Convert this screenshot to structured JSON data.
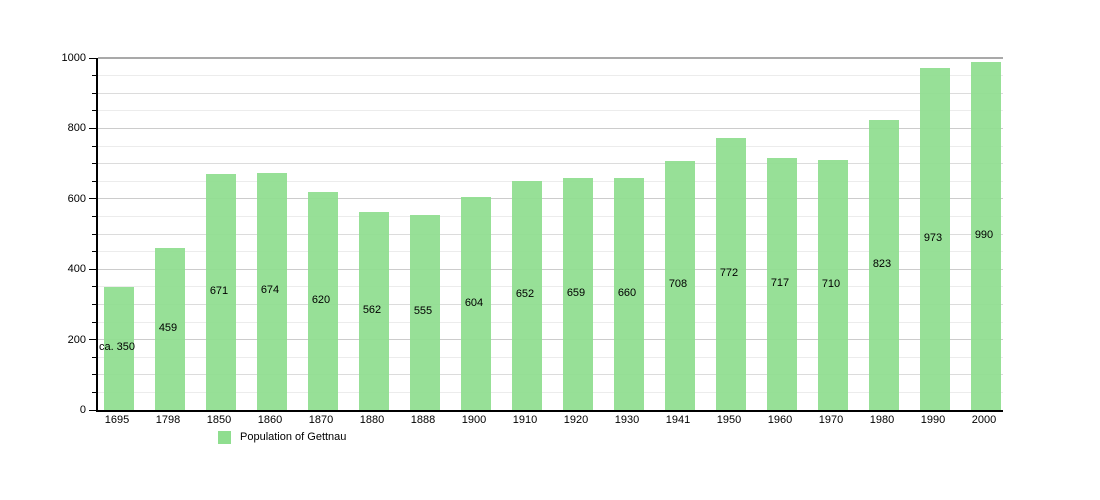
{
  "chart_data": {
    "type": "bar",
    "legend": "Population of Gettnau",
    "legend_position": "bottom-left",
    "categories": [
      "1695",
      "1798",
      "1850",
      "1860",
      "1870",
      "1880",
      "1888",
      "1900",
      "1910",
      "1920",
      "1930",
      "1941",
      "1950",
      "1960",
      "1970",
      "1980",
      "1990",
      "2000"
    ],
    "values": [
      350,
      459,
      671,
      674,
      620,
      562,
      555,
      604,
      652,
      659,
      660,
      708,
      772,
      717,
      710,
      823,
      973,
      990
    ],
    "bar_labels": [
      "ca. 350",
      "459",
      "671",
      "674",
      "620",
      "562",
      "555",
      "604",
      "652",
      "659",
      "660",
      "708",
      "772",
      "717",
      "710",
      "823",
      "973",
      "990"
    ],
    "xlabel": "",
    "ylabel": "",
    "ylim": [
      0,
      1000
    ],
    "y_major_ticks": [
      0,
      200,
      400,
      600,
      800,
      1000
    ],
    "y_major_tick_labels": [
      "0",
      "200",
      "400",
      "600",
      "800",
      "1000"
    ],
    "y_minor_step": 50,
    "grid": "horizontal-on",
    "colors": {
      "bar_fill": "#8FDE8F",
      "axis": "#000000",
      "grid_minor": "#ececec",
      "grid_mid": "#dcdcdc",
      "grid_major": "#cccccc",
      "grid_top": "#a9a9a9",
      "text": "#000000",
      "background": "#ffffff"
    }
  }
}
